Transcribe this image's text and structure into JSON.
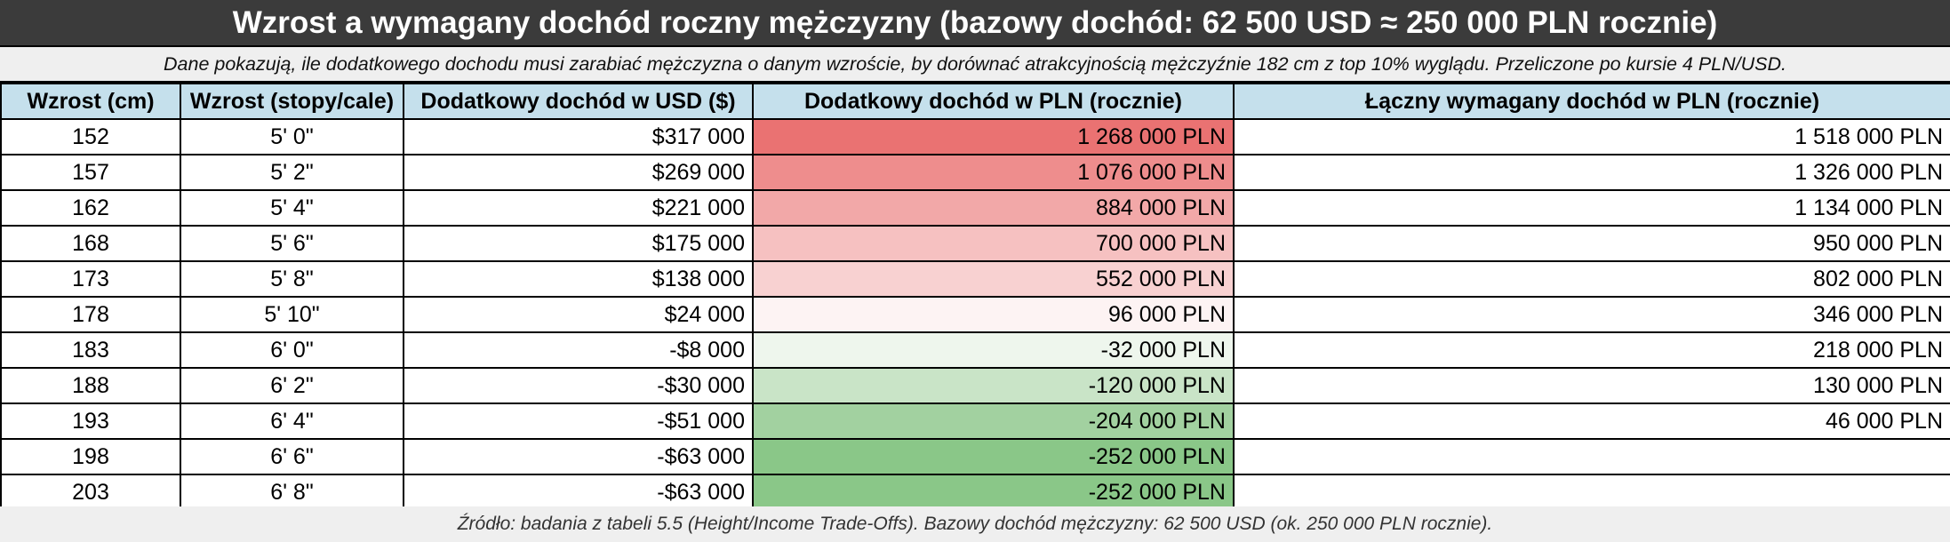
{
  "title": "Wzrost a wymagany dochód roczny mężczyzny (bazowy dochód: 62 500 USD ≈ 250 000 PLN rocznie)",
  "subtitle": "Dane pokazują, ile dodatkowego dochodu musi zarabiać mężczyzna o danym wzroście, by dorównać atrakcyjnością mężczyźnie 182 cm z top 10% wyglądu. Przeliczone po kursie 4 PLN/USD.",
  "headers": {
    "cm": "Wzrost (cm)",
    "ft": "Wzrost (stopy/cale)",
    "usd": "Dodatkowy dochód w USD ($)",
    "pln": "Dodatkowy dochód w PLN (rocznie)",
    "total": "Łączny wymagany dochód w PLN (rocznie)"
  },
  "rows": [
    {
      "cm": "152",
      "ft": "5' 0\"",
      "usd": "$317 000",
      "pln": "1 268 000 PLN",
      "total": "1 518 000 PLN",
      "pln_color": "#ea7272"
    },
    {
      "cm": "157",
      "ft": "5' 2\"",
      "usd": "$269 000",
      "pln": "1 076 000 PLN",
      "total": "1 326 000 PLN",
      "pln_color": "#ee8d8d"
    },
    {
      "cm": "162",
      "ft": "5' 4\"",
      "usd": "$221 000",
      "pln": "884 000 PLN",
      "total": "1 134 000 PLN",
      "pln_color": "#f2a8a8"
    },
    {
      "cm": "168",
      "ft": "5' 6\"",
      "usd": "$175 000",
      "pln": "700 000 PLN",
      "total": "950 000 PLN",
      "pln_color": "#f6c1c1"
    },
    {
      "cm": "173",
      "ft": "5' 8\"",
      "usd": "$138 000",
      "pln": "552 000 PLN",
      "total": "802 000 PLN",
      "pln_color": "#f8d1d1"
    },
    {
      "cm": "178",
      "ft": "5' 10\"",
      "usd": "$24 000",
      "pln": "96 000 PLN",
      "total": "346 000 PLN",
      "pln_color": "#fdf3f3"
    },
    {
      "cm": "183",
      "ft": "6' 0\"",
      "usd": "-$8 000",
      "pln": "-32 000 PLN",
      "total": "218 000 PLN",
      "pln_color": "#eef6ed"
    },
    {
      "cm": "188",
      "ft": "6' 2\"",
      "usd": "-$30 000",
      "pln": "-120 000 PLN",
      "total": "130 000 PLN",
      "pln_color": "#c9e4c7"
    },
    {
      "cm": "193",
      "ft": "6' 4\"",
      "usd": "-$51 000",
      "pln": "-204 000 PLN",
      "total": "46 000 PLN",
      "pln_color": "#a2d1a0"
    },
    {
      "cm": "198",
      "ft": "6' 6\"",
      "usd": "-$63 000",
      "pln": "-252 000 PLN",
      "total": "",
      "pln_color": "#8ac788"
    },
    {
      "cm": "203",
      "ft": "6' 8\"",
      "usd": "-$63 000",
      "pln": "-252 000 PLN",
      "total": "",
      "pln_color": "#8ac788"
    }
  ],
  "footer": "Źródło: badania z tabeli 5.5 (Height/Income Trade-Offs). Bazowy dochód mężczyzny: 62 500 USD (ok. 250 000 PLN rocznie).",
  "colors": {
    "title_bg": "#3b3b3b",
    "header_bg": "#c5e0ec",
    "band_bg": "#efefef"
  }
}
